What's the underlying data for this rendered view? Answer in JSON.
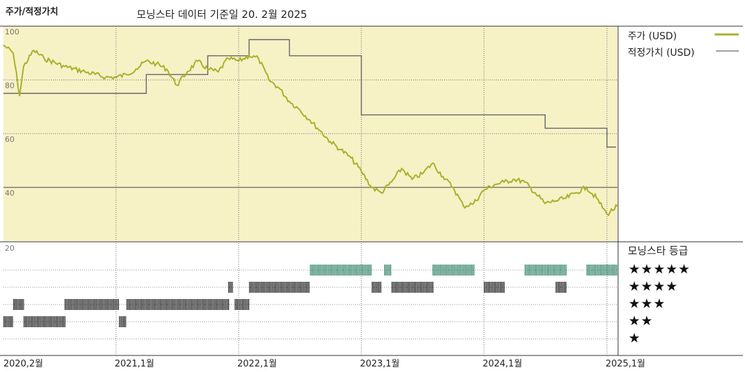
{
  "header": {
    "title": "주가/적정가치",
    "subtitle": "모닝스타 데이터 기준일 20. 2월 2025"
  },
  "legend": {
    "price_label": "주가 (USD)",
    "fair_value_label": "적정가치 (USD)"
  },
  "rating": {
    "title": "모닝스타 등급",
    "rows": [
      {
        "stars": "★★★★★",
        "color": "#3c8a70"
      },
      {
        "stars": "★★★★",
        "color": "#2a2a2a"
      },
      {
        "stars": "★★★",
        "color": "#2a2a2a"
      },
      {
        "stars": "★★",
        "color": "#2a2a2a"
      },
      {
        "stars": "★",
        "color": "#2a2a2a"
      }
    ]
  },
  "colors": {
    "plot_bg": "#f7f1c6",
    "price_line": "#a8b12a",
    "fair_value_line": "#666666",
    "five_star": "#3c8a70",
    "other_star": "#2a2a2a"
  },
  "chart_data": {
    "type": "line",
    "title": "주가/적정가치",
    "ylim": [
      20,
      100
    ],
    "yticks": [
      "100",
      "80",
      "60",
      "40",
      "20"
    ],
    "xticks": [
      "2020,2월",
      "2021,1월",
      "2022,1월",
      "2023,1월",
      "2024,1월",
      "2025,1월"
    ],
    "x_range": [
      "2020-02",
      "2025-02"
    ],
    "series": [
      {
        "name": "주가 (USD)",
        "points": [
          [
            "2020-02",
            93
          ],
          [
            "2020-03",
            90
          ],
          [
            "2020-03-20",
            74
          ],
          [
            "2020-04",
            85
          ],
          [
            "2020-05",
            91
          ],
          [
            "2020-06",
            88
          ],
          [
            "2020-08",
            85
          ],
          [
            "2020-10",
            83
          ],
          [
            "2020-12",
            81
          ],
          [
            "2021-01",
            81
          ],
          [
            "2021-02",
            82
          ],
          [
            "2021-03",
            84
          ],
          [
            "2021-04",
            87
          ],
          [
            "2021-05",
            86
          ],
          [
            "2021-06",
            84
          ],
          [
            "2021-07",
            78
          ],
          [
            "2021-08",
            83
          ],
          [
            "2021-09",
            87
          ],
          [
            "2021-10",
            84
          ],
          [
            "2021-11",
            83
          ],
          [
            "2021-12",
            88
          ],
          [
            "2022-01",
            87
          ],
          [
            "2022-02",
            89
          ],
          [
            "2022-03",
            88
          ],
          [
            "2022-04",
            80
          ],
          [
            "2022-05",
            77
          ],
          [
            "2022-06",
            72
          ],
          [
            "2022-07",
            69
          ],
          [
            "2022-08",
            65
          ],
          [
            "2022-09",
            61
          ],
          [
            "2022-10",
            57
          ],
          [
            "2022-11",
            54
          ],
          [
            "2022-12",
            51
          ],
          [
            "2023-01",
            46
          ],
          [
            "2023-02",
            40
          ],
          [
            "2023-03",
            38
          ],
          [
            "2023-04",
            42
          ],
          [
            "2023-05",
            47
          ],
          [
            "2023-06",
            43
          ],
          [
            "2023-07",
            45
          ],
          [
            "2023-08",
            49
          ],
          [
            "2023-09",
            44
          ],
          [
            "2023-10",
            40
          ],
          [
            "2023-11",
            33
          ],
          [
            "2023-12",
            34
          ],
          [
            "2024-01",
            39
          ],
          [
            "2024-02",
            41
          ],
          [
            "2024-03",
            42
          ],
          [
            "2024-04",
            43
          ],
          [
            "2024-05",
            42
          ],
          [
            "2024-06",
            38
          ],
          [
            "2024-07",
            34
          ],
          [
            "2024-08",
            35
          ],
          [
            "2024-09",
            36
          ],
          [
            "2024-10",
            38
          ],
          [
            "2024-11",
            40
          ],
          [
            "2024-12",
            36
          ],
          [
            "2025-01",
            30
          ],
          [
            "2025-02",
            33
          ]
        ]
      },
      {
        "name": "적정가치 (USD)",
        "steps": [
          [
            "2020-02",
            75
          ],
          [
            "2021-04",
            82
          ],
          [
            "2021-10",
            89
          ],
          [
            "2022-02",
            95
          ],
          [
            "2022-06",
            89
          ],
          [
            "2023-01",
            67
          ],
          [
            "2024-07",
            62
          ],
          [
            "2025-01",
            55
          ]
        ]
      }
    ],
    "ratings": {
      "5": [
        [
          "2022-08",
          "2023-02"
        ],
        [
          "2023-03-10",
          "2023-04"
        ],
        [
          "2023-08",
          "2023-12"
        ],
        [
          "2024-05",
          "2024-09"
        ],
        [
          "2024-11",
          "2025-02"
        ]
      ],
      "4": [
        [
          "2021-12",
          "2021-12-15"
        ],
        [
          "2022-02",
          "2022-08"
        ],
        [
          "2023-02",
          "2023-03"
        ],
        [
          "2023-04",
          "2023-08"
        ],
        [
          "2024-01",
          "2024-03"
        ],
        [
          "2024-08",
          "2024-09"
        ]
      ],
      "3": [
        [
          "2020-03",
          "2020-04"
        ],
        [
          "2020-08",
          "2021-01-10"
        ],
        [
          "2021-02",
          "2021-12"
        ],
        [
          "2021-12-20",
          "2022-02"
        ]
      ],
      "2": [
        [
          "2020-02",
          "2020-03"
        ],
        [
          "2020-04",
          "2020-08"
        ],
        [
          "2021-01-10",
          "2021-02"
        ]
      ],
      "1": []
    }
  }
}
